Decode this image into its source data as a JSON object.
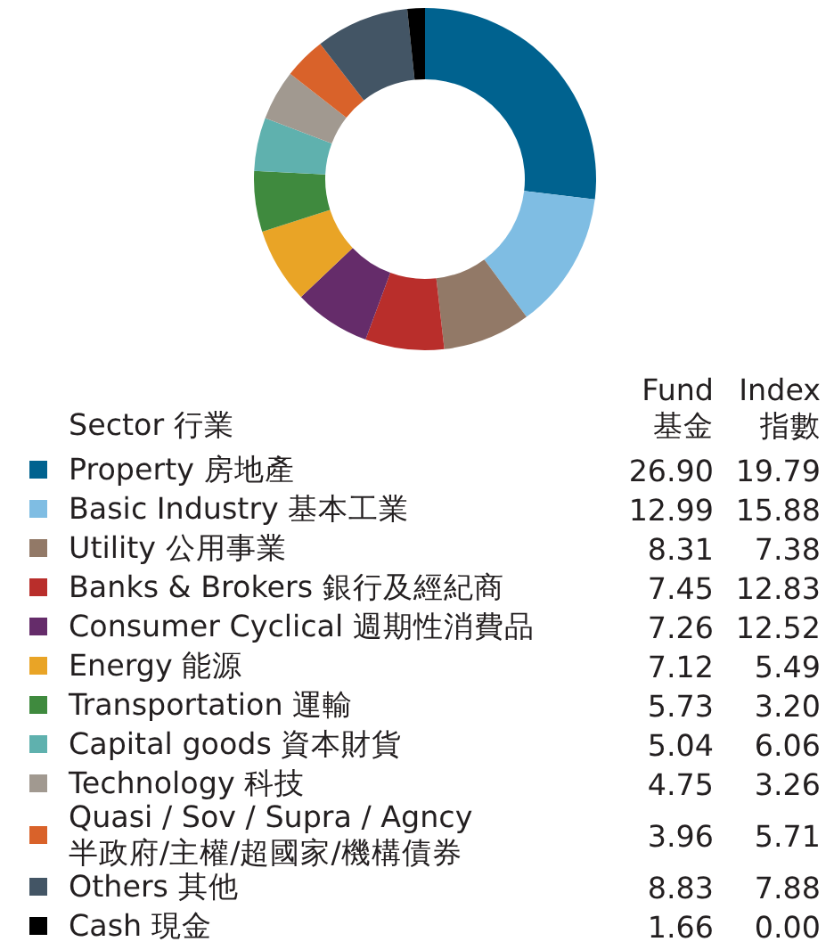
{
  "chart_data": {
    "type": "donut",
    "legend_title": "Sector 行業",
    "legend": "bottom",
    "value_labels": [
      "26.90",
      "12.99",
      "8.31",
      "7.45",
      "7.26",
      "7.12",
      "5.73",
      "5.04",
      "4.75",
      "3.96",
      "8.83",
      "1.66"
    ],
    "categories": [
      "Property 房地產",
      "Basic Industry 基本工業",
      "Utility 公用事業",
      "Banks & Brokers 銀行及經紀商",
      "Consumer Cyclical 週期性消費品",
      "Energy 能源",
      "Transportation 運輸",
      "Capital goods 資本財貨",
      "Technology 科技",
      "Quasi / Sov / Supra / Agncy\n半政府/主權/超國家/機構債券",
      "Others 其他",
      "Cash 現金"
    ],
    "values": [
      26.9,
      12.99,
      8.31,
      7.45,
      7.26,
      7.12,
      5.73,
      5.04,
      4.75,
      3.96,
      8.83,
      1.66
    ],
    "colors": [
      "#00628f",
      "#7fbde3",
      "#927967",
      "#b92e2b",
      "#652c6a",
      "#e9a426",
      "#3f8a3e",
      "#5fb1ae",
      "#a19990",
      "#d9622a",
      "#435565",
      "#000000"
    ],
    "annotations": [
      "Fund\n基金",
      "Index\n指數",
      "19.79",
      "15.88",
      "7.38",
      "12.83",
      "12.52",
      "5.49",
      "3.20",
      "6.06",
      "3.26",
      "5.71",
      "7.88",
      "0.00"
    ]
  }
}
